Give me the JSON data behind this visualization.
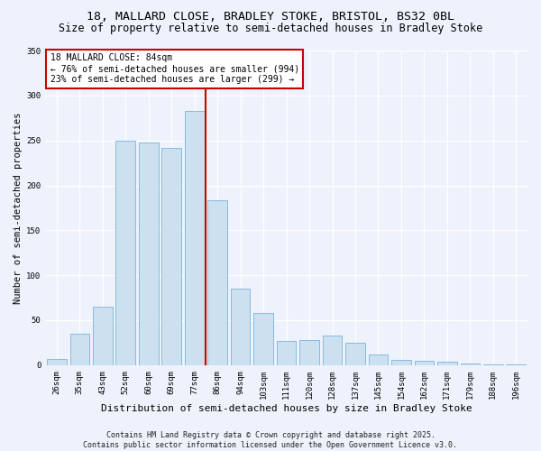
{
  "title_line1": "18, MALLARD CLOSE, BRADLEY STOKE, BRISTOL, BS32 0BL",
  "title_line2": "Size of property relative to semi-detached houses in Bradley Stoke",
  "xlabel": "Distribution of semi-detached houses by size in Bradley Stoke",
  "ylabel": "Number of semi-detached properties",
  "categories": [
    "26sqm",
    "35sqm",
    "43sqm",
    "52sqm",
    "60sqm",
    "69sqm",
    "77sqm",
    "86sqm",
    "94sqm",
    "103sqm",
    "111sqm",
    "120sqm",
    "128sqm",
    "137sqm",
    "145sqm",
    "154sqm",
    "162sqm",
    "171sqm",
    "179sqm",
    "188sqm",
    "196sqm"
  ],
  "values": [
    7,
    35,
    65,
    250,
    248,
    242,
    283,
    183,
    85,
    58,
    27,
    28,
    33,
    25,
    12,
    6,
    5,
    4,
    2,
    1,
    1
  ],
  "bar_color": "#cce0f0",
  "bar_edge_color": "#88bbdd",
  "highlight_index": 7,
  "highlight_line_color": "#cc0000",
  "annotation_title": "18 MALLARD CLOSE: 84sqm",
  "annotation_line2": "← 76% of semi-detached houses are smaller (994)",
  "annotation_line3": "23% of semi-detached houses are larger (299) →",
  "annotation_box_facecolor": "#ffffff",
  "annotation_box_edgecolor": "#cc0000",
  "ylim": [
    0,
    350
  ],
  "yticks": [
    0,
    50,
    100,
    150,
    200,
    250,
    300,
    350
  ],
  "footer_line1": "Contains HM Land Registry data © Crown copyright and database right 2025.",
  "footer_line2": "Contains public sector information licensed under the Open Government Licence v3.0.",
  "background_color": "#eef2fc",
  "plot_bg_color": "#eef2fc",
  "title_fontsize": 9.5,
  "subtitle_fontsize": 8.5,
  "tick_fontsize": 6.5,
  "ylabel_fontsize": 7.5,
  "xlabel_fontsize": 8,
  "annotation_fontsize": 7,
  "footer_fontsize": 6
}
